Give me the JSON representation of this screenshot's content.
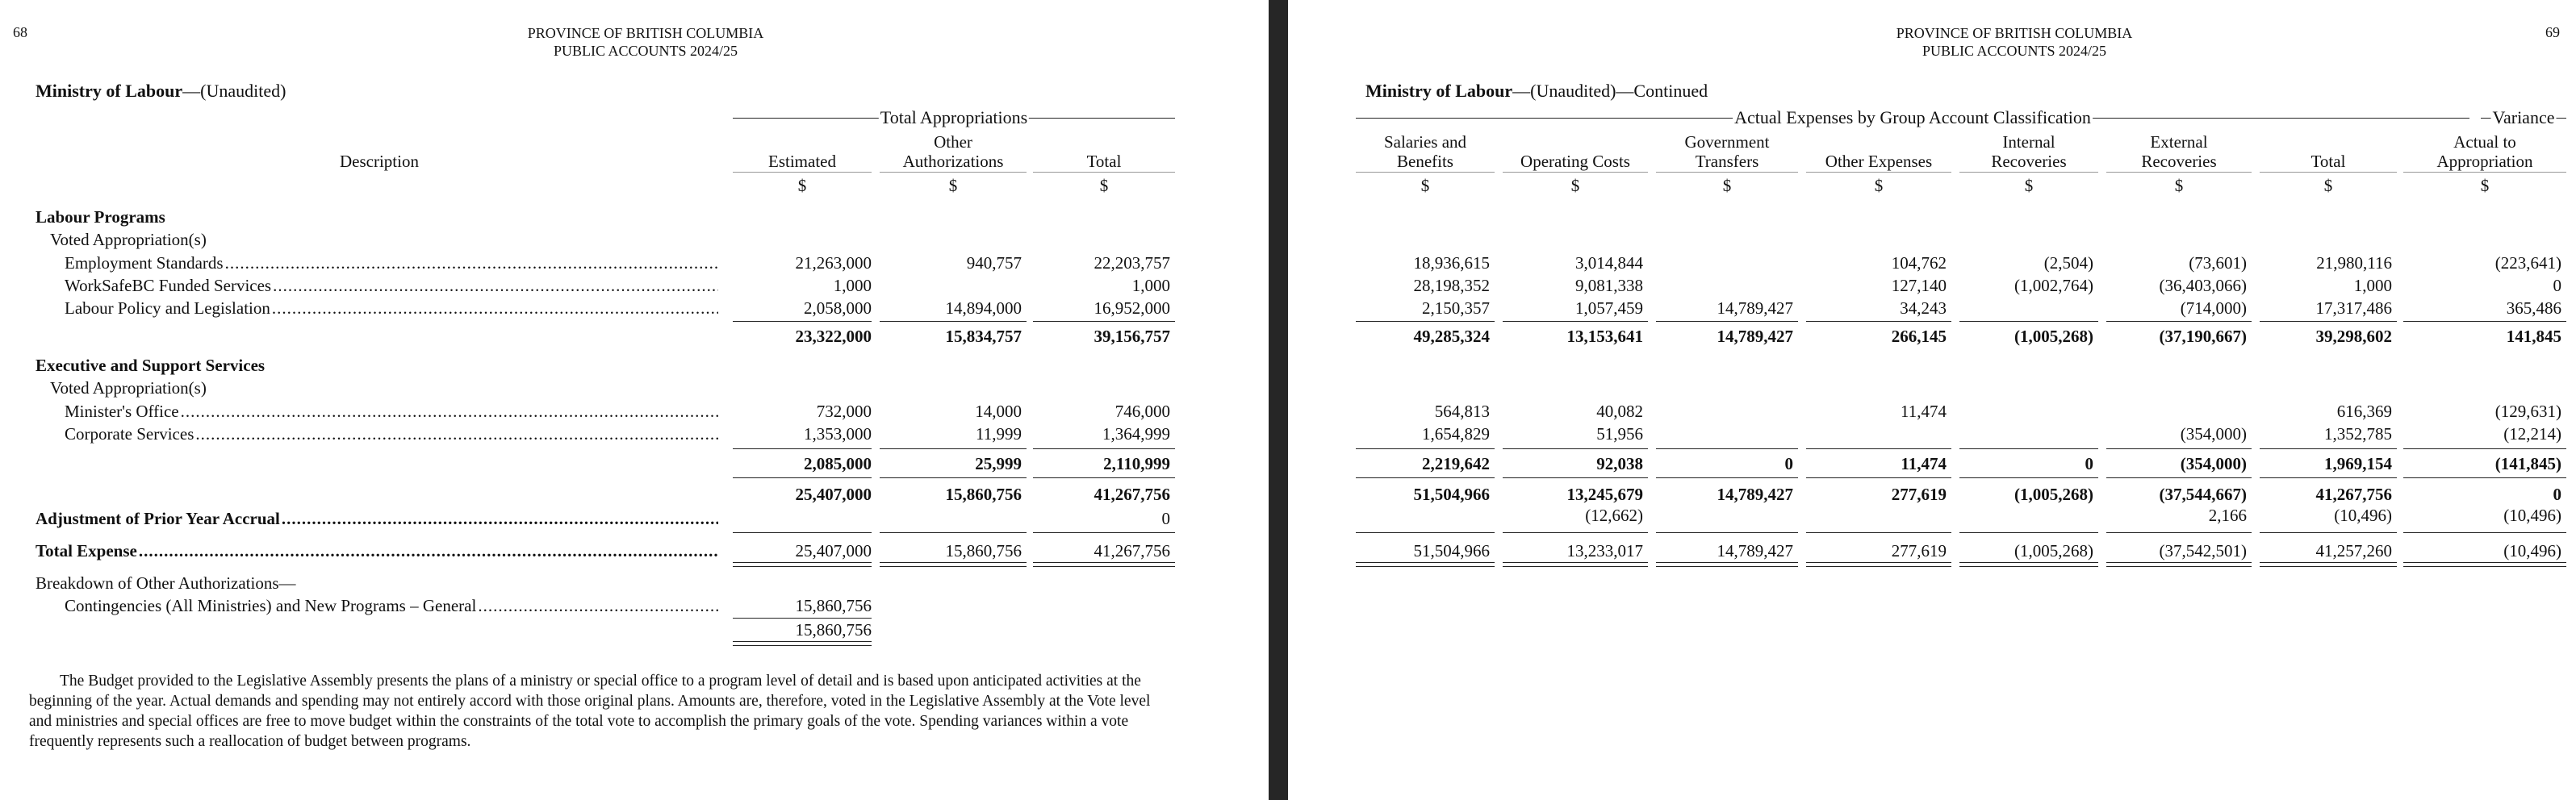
{
  "left_page": {
    "page_number": "68",
    "header": {
      "line1": "PROVINCE OF BRITISH COLUMBIA",
      "line2": "PUBLIC ACCOUNTS 2024/25"
    },
    "title_bold": "Ministry of Labour",
    "title_rest": "—(Unaudited)",
    "group_header": "Total Appropriations",
    "columns": {
      "description": "Description",
      "estimated": "Estimated",
      "other_auth_1": "Other",
      "other_auth_2": "Authorizations",
      "total": "Total",
      "currency": "$"
    },
    "rows": {
      "labour_programs": "Labour Programs",
      "voted_1": "Voted Appropriation(s)",
      "employment_standards": {
        "label": "Employment Standards",
        "estimated": "21,263,000",
        "other": "940,757",
        "total": "22,203,757"
      },
      "worksafebc": {
        "label": "WorkSafeBC Funded Services",
        "estimated": "1,000",
        "other": "",
        "total": "1,000"
      },
      "labour_policy": {
        "label": "Labour Policy and Legislation",
        "estimated": "2,058,000",
        "other": "14,894,000",
        "total": "16,952,000"
      },
      "subtotal_labour": {
        "estimated": "23,322,000",
        "other": "15,834,757",
        "total": "39,156,757"
      },
      "executive": "Executive and Support Services",
      "voted_2": "Voted Appropriation(s)",
      "ministers_office": {
        "label": "Minister's Office",
        "estimated": "732,000",
        "other": "14,000",
        "total": "746,000"
      },
      "corporate": {
        "label": "Corporate Services",
        "estimated": "1,353,000",
        "other": "11,999",
        "total": "1,364,999"
      },
      "subtotal_exec": {
        "estimated": "2,085,000",
        "other": "25,999",
        "total": "2,110,999"
      },
      "grand_subtotal": {
        "estimated": "25,407,000",
        "other": "15,860,756",
        "total": "41,267,756"
      },
      "adjustment": {
        "label": "Adjustment of Prior Year Accrual",
        "total": "0"
      },
      "total_expense": {
        "label": "Total Expense",
        "estimated": "25,407,000",
        "other": "15,860,756",
        "total": "41,267,756"
      },
      "breakdown": "Breakdown of Other Authorizations—",
      "contingencies": {
        "label": "Contingencies (All Ministries) and New Programs – General",
        "value": "15,860,756"
      },
      "contingencies_total": "15,860,756"
    },
    "note": "The Budget provided to the Legislative Assembly presents the plans of a ministry or special office to a program level of detail and is based upon anticipated activities at the beginning of the year. Actual demands and spending may not entirely accord with those original plans. Amounts are, therefore, voted in the Legislative Assembly at the Vote level and ministries and special offices are free to move budget within the constraints of the total vote to accomplish the primary goals of the vote. Spending variances within a vote frequently represents such a reallocation of budget between programs."
  },
  "right_page": {
    "page_number": "69",
    "header": {
      "line1": "PROVINCE OF BRITISH COLUMBIA",
      "line2": "PUBLIC ACCOUNTS 2024/25"
    },
    "title_bold": "Ministry of Labour",
    "title_rest": "—(Unaudited)—Continued",
    "group_header": "Actual Expenses by Group Account Classification",
    "variance_header": "Variance",
    "columns": [
      {
        "l1": "Salaries and",
        "l2": "Benefits"
      },
      {
        "l1": "",
        "l2": "Operating Costs"
      },
      {
        "l1": "Government",
        "l2": "Transfers"
      },
      {
        "l1": "",
        "l2": "Other Expenses"
      },
      {
        "l1": "Internal",
        "l2": "Recoveries"
      },
      {
        "l1": "External",
        "l2": "Recoveries"
      },
      {
        "l1": "",
        "l2": "Total"
      },
      {
        "l1": "Actual to",
        "l2": "Appropriation"
      }
    ],
    "currency": "$",
    "rows": [
      [
        "18,936,615",
        "3,014,844",
        "",
        "104,762",
        "(2,504)",
        "(73,601)",
        "21,980,116",
        "(223,641)"
      ],
      [
        "28,198,352",
        "9,081,338",
        "",
        "127,140",
        "(1,002,764)",
        "(36,403,066)",
        "1,000",
        "0"
      ],
      [
        "2,150,357",
        "1,057,459",
        "14,789,427",
        "34,243",
        "",
        "(714,000)",
        "17,317,486",
        "365,486"
      ],
      [
        "49,285,324",
        "13,153,641",
        "14,789,427",
        "266,145",
        "(1,005,268)",
        "(37,190,667)",
        "39,298,602",
        "141,845"
      ],
      [
        "564,813",
        "40,082",
        "",
        "11,474",
        "",
        "",
        "616,369",
        "(129,631)"
      ],
      [
        "1,654,829",
        "51,956",
        "",
        "",
        "",
        "(354,000)",
        "1,352,785",
        "(12,214)"
      ],
      [
        "2,219,642",
        "92,038",
        "0",
        "11,474",
        "0",
        "(354,000)",
        "1,969,154",
        "(141,845)"
      ],
      [
        "51,504,966",
        "13,245,679",
        "14,789,427",
        "277,619",
        "(1,005,268)",
        "(37,544,667)",
        "41,267,756",
        "0"
      ],
      [
        "",
        "(12,662)",
        "",
        "",
        "",
        "2,166",
        "(10,496)",
        "(10,496)"
      ],
      [
        "51,504,966",
        "13,233,017",
        "14,789,427",
        "277,619",
        "(1,005,268)",
        "(37,542,501)",
        "41,257,260",
        "(10,496)"
      ]
    ]
  }
}
